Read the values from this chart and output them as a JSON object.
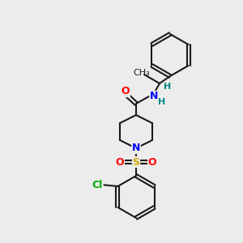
{
  "bg_color": "#ececec",
  "bond_color": "#1a1a1a",
  "bond_lw": 1.5,
  "atom_colors": {
    "N": "#0000ff",
    "O": "#ff0000",
    "S": "#ccaa00",
    "Cl": "#00aa00",
    "H": "#008888"
  },
  "font_size": 9,
  "font_size_small": 8
}
